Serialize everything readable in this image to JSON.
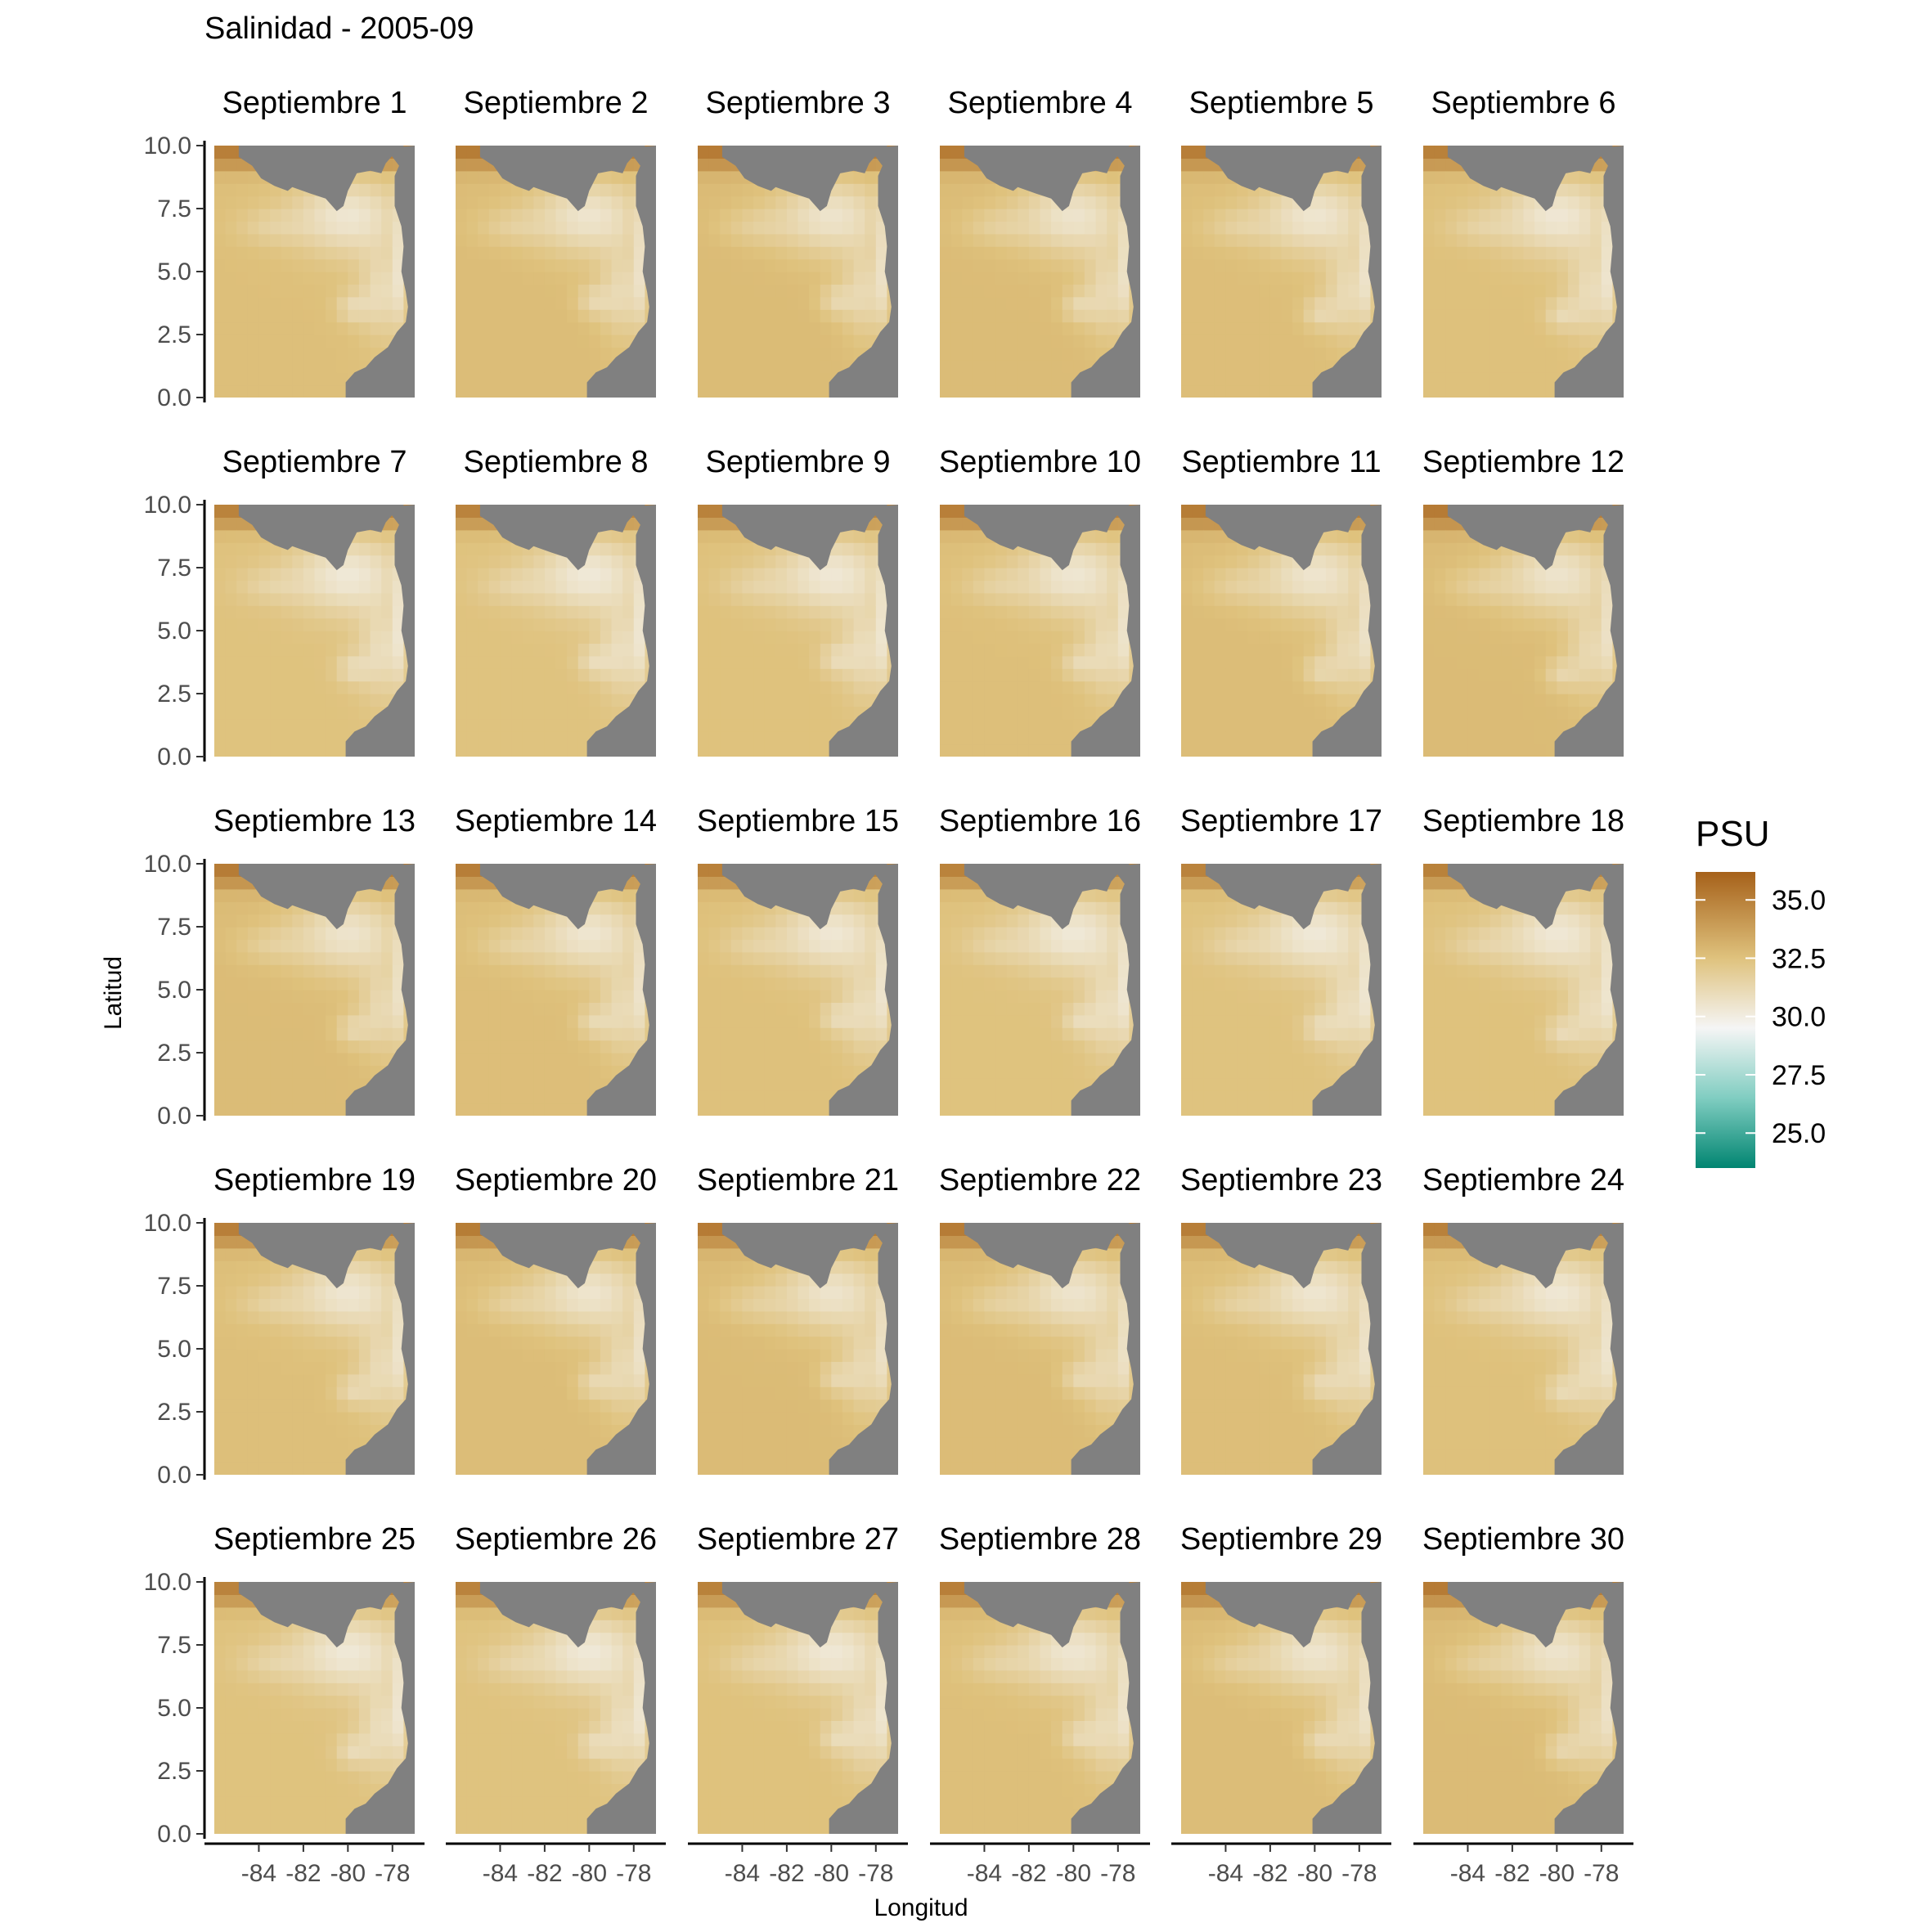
{
  "chart_data": {
    "type": "heatmap",
    "title": "Salinidad - 2005-09",
    "xlabel": "Longitud",
    "ylabel": "Latitud",
    "xlim": [
      -86,
      -77
    ],
    "ylim": [
      0,
      10
    ],
    "x_ticks": [
      -84,
      -82,
      -80,
      -78
    ],
    "x_tick_labels": [
      "-84",
      "-82",
      "-80",
      "-78"
    ],
    "y_ticks": [
      0,
      2.5,
      5,
      7.5,
      10
    ],
    "y_tick_labels": [
      "0.0",
      "2.5",
      "5.0",
      "7.5",
      "10.0"
    ],
    "legend": {
      "title": "PSU",
      "placement": "right",
      "range": [
        23.5,
        36.2
      ],
      "breaks": [
        35,
        32.5,
        30,
        27.5,
        25
      ],
      "labels": [
        "35.0",
        "32.5",
        "30.0",
        "27.5",
        "25.0"
      ],
      "colors": {
        "36.2": "#a6611a",
        "32.5": "#dfc27d",
        "29.5": "#f5f5f5",
        "26.5": "#80cdc1",
        "23.5": "#018571"
      }
    },
    "land_color": "#808080",
    "grid": false,
    "panels": [
      "Septiembre 1",
      "Septiembre 2",
      "Septiembre 3",
      "Septiembre 4",
      "Septiembre 5",
      "Septiembre 6",
      "Septiembre 7",
      "Septiembre 8",
      "Septiembre 9",
      "Septiembre 10",
      "Septiembre 11",
      "Septiembre 12",
      "Septiembre 13",
      "Septiembre 14",
      "Septiembre 15",
      "Septiembre 16",
      "Septiembre 17",
      "Septiembre 18",
      "Septiembre 19",
      "Septiembre 20",
      "Septiembre 21",
      "Septiembre 22",
      "Septiembre 23",
      "Septiembre 24",
      "Septiembre 25",
      "Septiembre 26",
      "Septiembre 27",
      "Septiembre 28",
      "Septiembre 29",
      "Septiembre 30"
    ]
  }
}
